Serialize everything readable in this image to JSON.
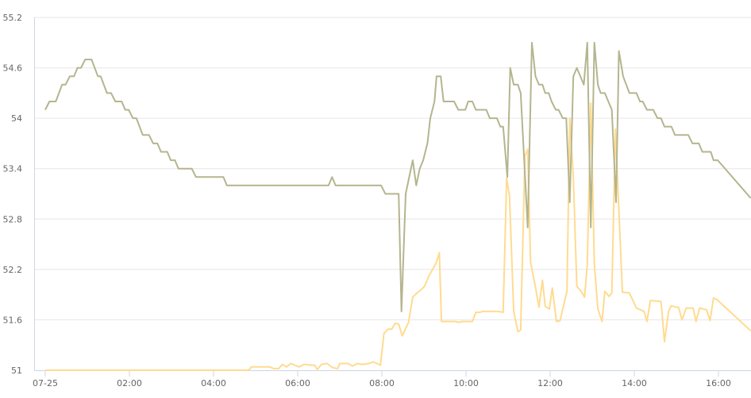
{
  "chart_data": {
    "type": "line",
    "title": "",
    "xlabel": "",
    "ylabel": "",
    "ylim": [
      51,
      55.2
    ],
    "yticks": [
      "51",
      "51.6",
      "52.2",
      "52.8",
      "53.4",
      "54",
      "54.6",
      "55.2"
    ],
    "xticks": [
      {
        "t": "00:00",
        "label": "07-25"
      },
      {
        "t": "02:00",
        "label": "02:00"
      },
      {
        "t": "04:00",
        "label": "04:00"
      },
      {
        "t": "06:00",
        "label": "06:00"
      },
      {
        "t": "08:00",
        "label": "08:00"
      },
      {
        "t": "10:00",
        "label": "10:00"
      },
      {
        "t": "12:00",
        "label": "12:00"
      },
      {
        "t": "14:00",
        "label": "14:00"
      },
      {
        "t": "16:00",
        "label": "16:00"
      }
    ],
    "grid": true,
    "legend": "none",
    "series": [
      {
        "color": "#b5b58f",
        "points": [
          [
            "00:00",
            54.1
          ],
          [
            "00:06",
            54.2
          ],
          [
            "00:15",
            54.2
          ],
          [
            "00:24",
            54.4
          ],
          [
            "00:29",
            54.4
          ],
          [
            "00:35",
            54.5
          ],
          [
            "00:41",
            54.5
          ],
          [
            "00:46",
            54.6
          ],
          [
            "00:51",
            54.6
          ],
          [
            "00:57",
            54.7
          ],
          [
            "01:06",
            54.7
          ],
          [
            "01:15",
            54.5
          ],
          [
            "01:19",
            54.5
          ],
          [
            "01:28",
            54.3
          ],
          [
            "01:34",
            54.3
          ],
          [
            "01:40",
            54.2
          ],
          [
            "01:49",
            54.2
          ],
          [
            "01:54",
            54.1
          ],
          [
            "01:59",
            54.1
          ],
          [
            "02:05",
            54.0
          ],
          [
            "02:10",
            54.0
          ],
          [
            "02:19",
            53.8
          ],
          [
            "02:28",
            53.8
          ],
          [
            "02:34",
            53.7
          ],
          [
            "02:40",
            53.7
          ],
          [
            "02:45",
            53.6
          ],
          [
            "02:54",
            53.6
          ],
          [
            "02:59",
            53.5
          ],
          [
            "03:05",
            53.5
          ],
          [
            "03:10",
            53.4
          ],
          [
            "03:29",
            53.4
          ],
          [
            "03:35",
            53.3
          ],
          [
            "04:14",
            53.3
          ],
          [
            "04:19",
            53.2
          ],
          [
            "06:44",
            53.2
          ],
          [
            "06:49",
            53.3
          ],
          [
            "06:54",
            53.2
          ],
          [
            "07:59",
            53.2
          ],
          [
            "08:05",
            53.1
          ],
          [
            "08:24",
            53.1
          ],
          [
            "08:28",
            51.7
          ],
          [
            "08:34",
            53.1
          ],
          [
            "08:44",
            53.5
          ],
          [
            "08:49",
            53.2
          ],
          [
            "08:54",
            53.4
          ],
          [
            "08:59",
            53.5
          ],
          [
            "09:05",
            53.7
          ],
          [
            "09:09",
            54.0
          ],
          [
            "09:15",
            54.2
          ],
          [
            "09:18",
            54.5
          ],
          [
            "09:24",
            54.5
          ],
          [
            "09:28",
            54.2
          ],
          [
            "09:43",
            54.2
          ],
          [
            "09:49",
            54.1
          ],
          [
            "09:59",
            54.1
          ],
          [
            "10:03",
            54.2
          ],
          [
            "10:09",
            54.2
          ],
          [
            "10:14",
            54.1
          ],
          [
            "10:29",
            54.1
          ],
          [
            "10:34",
            54.0
          ],
          [
            "10:44",
            54.0
          ],
          [
            "10:49",
            53.9
          ],
          [
            "10:53",
            53.9
          ],
          [
            "10:59",
            53.3
          ],
          [
            "11:03",
            54.6
          ],
          [
            "11:08",
            54.4
          ],
          [
            "11:14",
            54.4
          ],
          [
            "11:18",
            54.3
          ],
          [
            "11:28",
            52.7
          ],
          [
            "11:34",
            54.9
          ],
          [
            "11:39",
            54.5
          ],
          [
            "11:44",
            54.4
          ],
          [
            "11:49",
            54.4
          ],
          [
            "11:53",
            54.3
          ],
          [
            "11:58",
            54.3
          ],
          [
            "12:02",
            54.2
          ],
          [
            "12:08",
            54.1
          ],
          [
            "12:12",
            54.1
          ],
          [
            "12:18",
            54.0
          ],
          [
            "12:23",
            54.0
          ],
          [
            "12:28",
            53.0
          ],
          [
            "12:33",
            54.5
          ],
          [
            "12:38",
            54.6
          ],
          [
            "12:48",
            54.4
          ],
          [
            "12:53",
            54.9
          ],
          [
            "12:58",
            52.7
          ],
          [
            "13:03",
            54.9
          ],
          [
            "13:08",
            54.4
          ],
          [
            "13:12",
            54.3
          ],
          [
            "13:18",
            54.3
          ],
          [
            "13:23",
            54.2
          ],
          [
            "13:28",
            54.1
          ],
          [
            "13:34",
            53.0
          ],
          [
            "13:38",
            54.8
          ],
          [
            "13:44",
            54.5
          ],
          [
            "13:53",
            54.3
          ],
          [
            "14:03",
            54.3
          ],
          [
            "14:08",
            54.2
          ],
          [
            "14:12",
            54.2
          ],
          [
            "14:18",
            54.1
          ],
          [
            "14:27",
            54.1
          ],
          [
            "14:33",
            54.0
          ],
          [
            "14:38",
            54.0
          ],
          [
            "14:43",
            53.9
          ],
          [
            "14:53",
            53.9
          ],
          [
            "14:58",
            53.8
          ],
          [
            "15:17",
            53.8
          ],
          [
            "15:23",
            53.7
          ],
          [
            "15:32",
            53.7
          ],
          [
            "15:37",
            53.6
          ],
          [
            "15:49",
            53.6
          ],
          [
            "15:53",
            53.5
          ],
          [
            "15:59",
            53.5
          ],
          [
            "16:46",
            53.05
          ]
        ]
      },
      {
        "color": "#ffdb8f",
        "points": [
          [
            "00:00",
            51.0
          ],
          [
            "04:50",
            51.0
          ],
          [
            "04:54",
            51.04
          ],
          [
            "05:20",
            51.04
          ],
          [
            "05:26",
            51.02
          ],
          [
            "05:33",
            51.02
          ],
          [
            "05:38",
            51.07
          ],
          [
            "05:44",
            51.04
          ],
          [
            "05:50",
            51.08
          ],
          [
            "06:02",
            51.04
          ],
          [
            "06:09",
            51.07
          ],
          [
            "06:19",
            51.06
          ],
          [
            "06:24",
            51.06
          ],
          [
            "06:28",
            51.01
          ],
          [
            "06:34",
            51.07
          ],
          [
            "06:42",
            51.08
          ],
          [
            "06:50",
            51.03
          ],
          [
            "06:57",
            51.02
          ],
          [
            "07:00",
            51.08
          ],
          [
            "07:12",
            51.08
          ],
          [
            "07:18",
            51.05
          ],
          [
            "07:25",
            51.08
          ],
          [
            "07:32",
            51.07
          ],
          [
            "07:42",
            51.08
          ],
          [
            "07:48",
            51.1
          ],
          [
            "07:58",
            51.06
          ],
          [
            "08:03",
            51.44
          ],
          [
            "08:09",
            51.49
          ],
          [
            "08:14",
            51.49
          ],
          [
            "08:19",
            51.56
          ],
          [
            "08:24",
            51.55
          ],
          [
            "08:29",
            51.41
          ],
          [
            "08:38",
            51.57
          ],
          [
            "08:44",
            51.87
          ],
          [
            "08:50",
            51.92
          ],
          [
            "08:55",
            51.95
          ],
          [
            "09:01",
            52.0
          ],
          [
            "09:07",
            52.12
          ],
          [
            "09:15",
            52.24
          ],
          [
            "09:18",
            52.29
          ],
          [
            "09:22",
            52.4
          ],
          [
            "09:25",
            51.58
          ],
          [
            "09:29",
            51.58
          ],
          [
            "09:44",
            51.58
          ],
          [
            "09:50",
            51.57
          ],
          [
            "09:55",
            51.58
          ],
          [
            "10:09",
            51.58
          ],
          [
            "10:14",
            51.69
          ],
          [
            "10:20",
            51.69
          ],
          [
            "10:24",
            51.7
          ],
          [
            "10:46",
            51.7
          ],
          [
            "10:53",
            51.69
          ],
          [
            "10:58",
            53.29
          ],
          [
            "11:02",
            53.07
          ],
          [
            "11:08",
            51.7
          ],
          [
            "11:14",
            51.46
          ],
          [
            "11:18",
            51.48
          ],
          [
            "11:24",
            53.55
          ],
          [
            "11:28",
            53.63
          ],
          [
            "11:32",
            52.29
          ],
          [
            "11:39",
            51.99
          ],
          [
            "11:44",
            51.75
          ],
          [
            "11:49",
            52.07
          ],
          [
            "11:53",
            51.76
          ],
          [
            "11:59",
            51.73
          ],
          [
            "12:03",
            51.98
          ],
          [
            "12:09",
            51.58
          ],
          [
            "12:14",
            51.59
          ],
          [
            "12:18",
            51.73
          ],
          [
            "12:24",
            51.94
          ],
          [
            "12:28",
            54.0
          ],
          [
            "12:33",
            53.3
          ],
          [
            "12:38",
            52.0
          ],
          [
            "12:44",
            51.94
          ],
          [
            "12:49",
            51.87
          ],
          [
            "12:53",
            52.26
          ],
          [
            "12:58",
            54.18
          ],
          [
            "13:03",
            52.26
          ],
          [
            "13:08",
            51.73
          ],
          [
            "13:14",
            51.58
          ],
          [
            "13:18",
            51.94
          ],
          [
            "13:24",
            51.88
          ],
          [
            "13:28",
            51.92
          ],
          [
            "13:33",
            53.87
          ],
          [
            "13:43",
            51.93
          ],
          [
            "13:53",
            51.92
          ],
          [
            "14:03",
            51.74
          ],
          [
            "14:14",
            51.7
          ],
          [
            "14:18",
            51.58
          ],
          [
            "14:23",
            51.83
          ],
          [
            "14:38",
            51.82
          ],
          [
            "14:43",
            51.34
          ],
          [
            "14:49",
            51.71
          ],
          [
            "14:53",
            51.77
          ],
          [
            "14:59",
            51.75
          ],
          [
            "15:03",
            51.75
          ],
          [
            "15:08",
            51.6
          ],
          [
            "15:14",
            51.74
          ],
          [
            "15:24",
            51.74
          ],
          [
            "15:28",
            51.58
          ],
          [
            "15:33",
            51.74
          ],
          [
            "15:43",
            51.72
          ],
          [
            "15:48",
            51.59
          ],
          [
            "15:53",
            51.86
          ],
          [
            "15:58",
            51.84
          ],
          [
            "16:46",
            51.47
          ]
        ]
      }
    ]
  }
}
